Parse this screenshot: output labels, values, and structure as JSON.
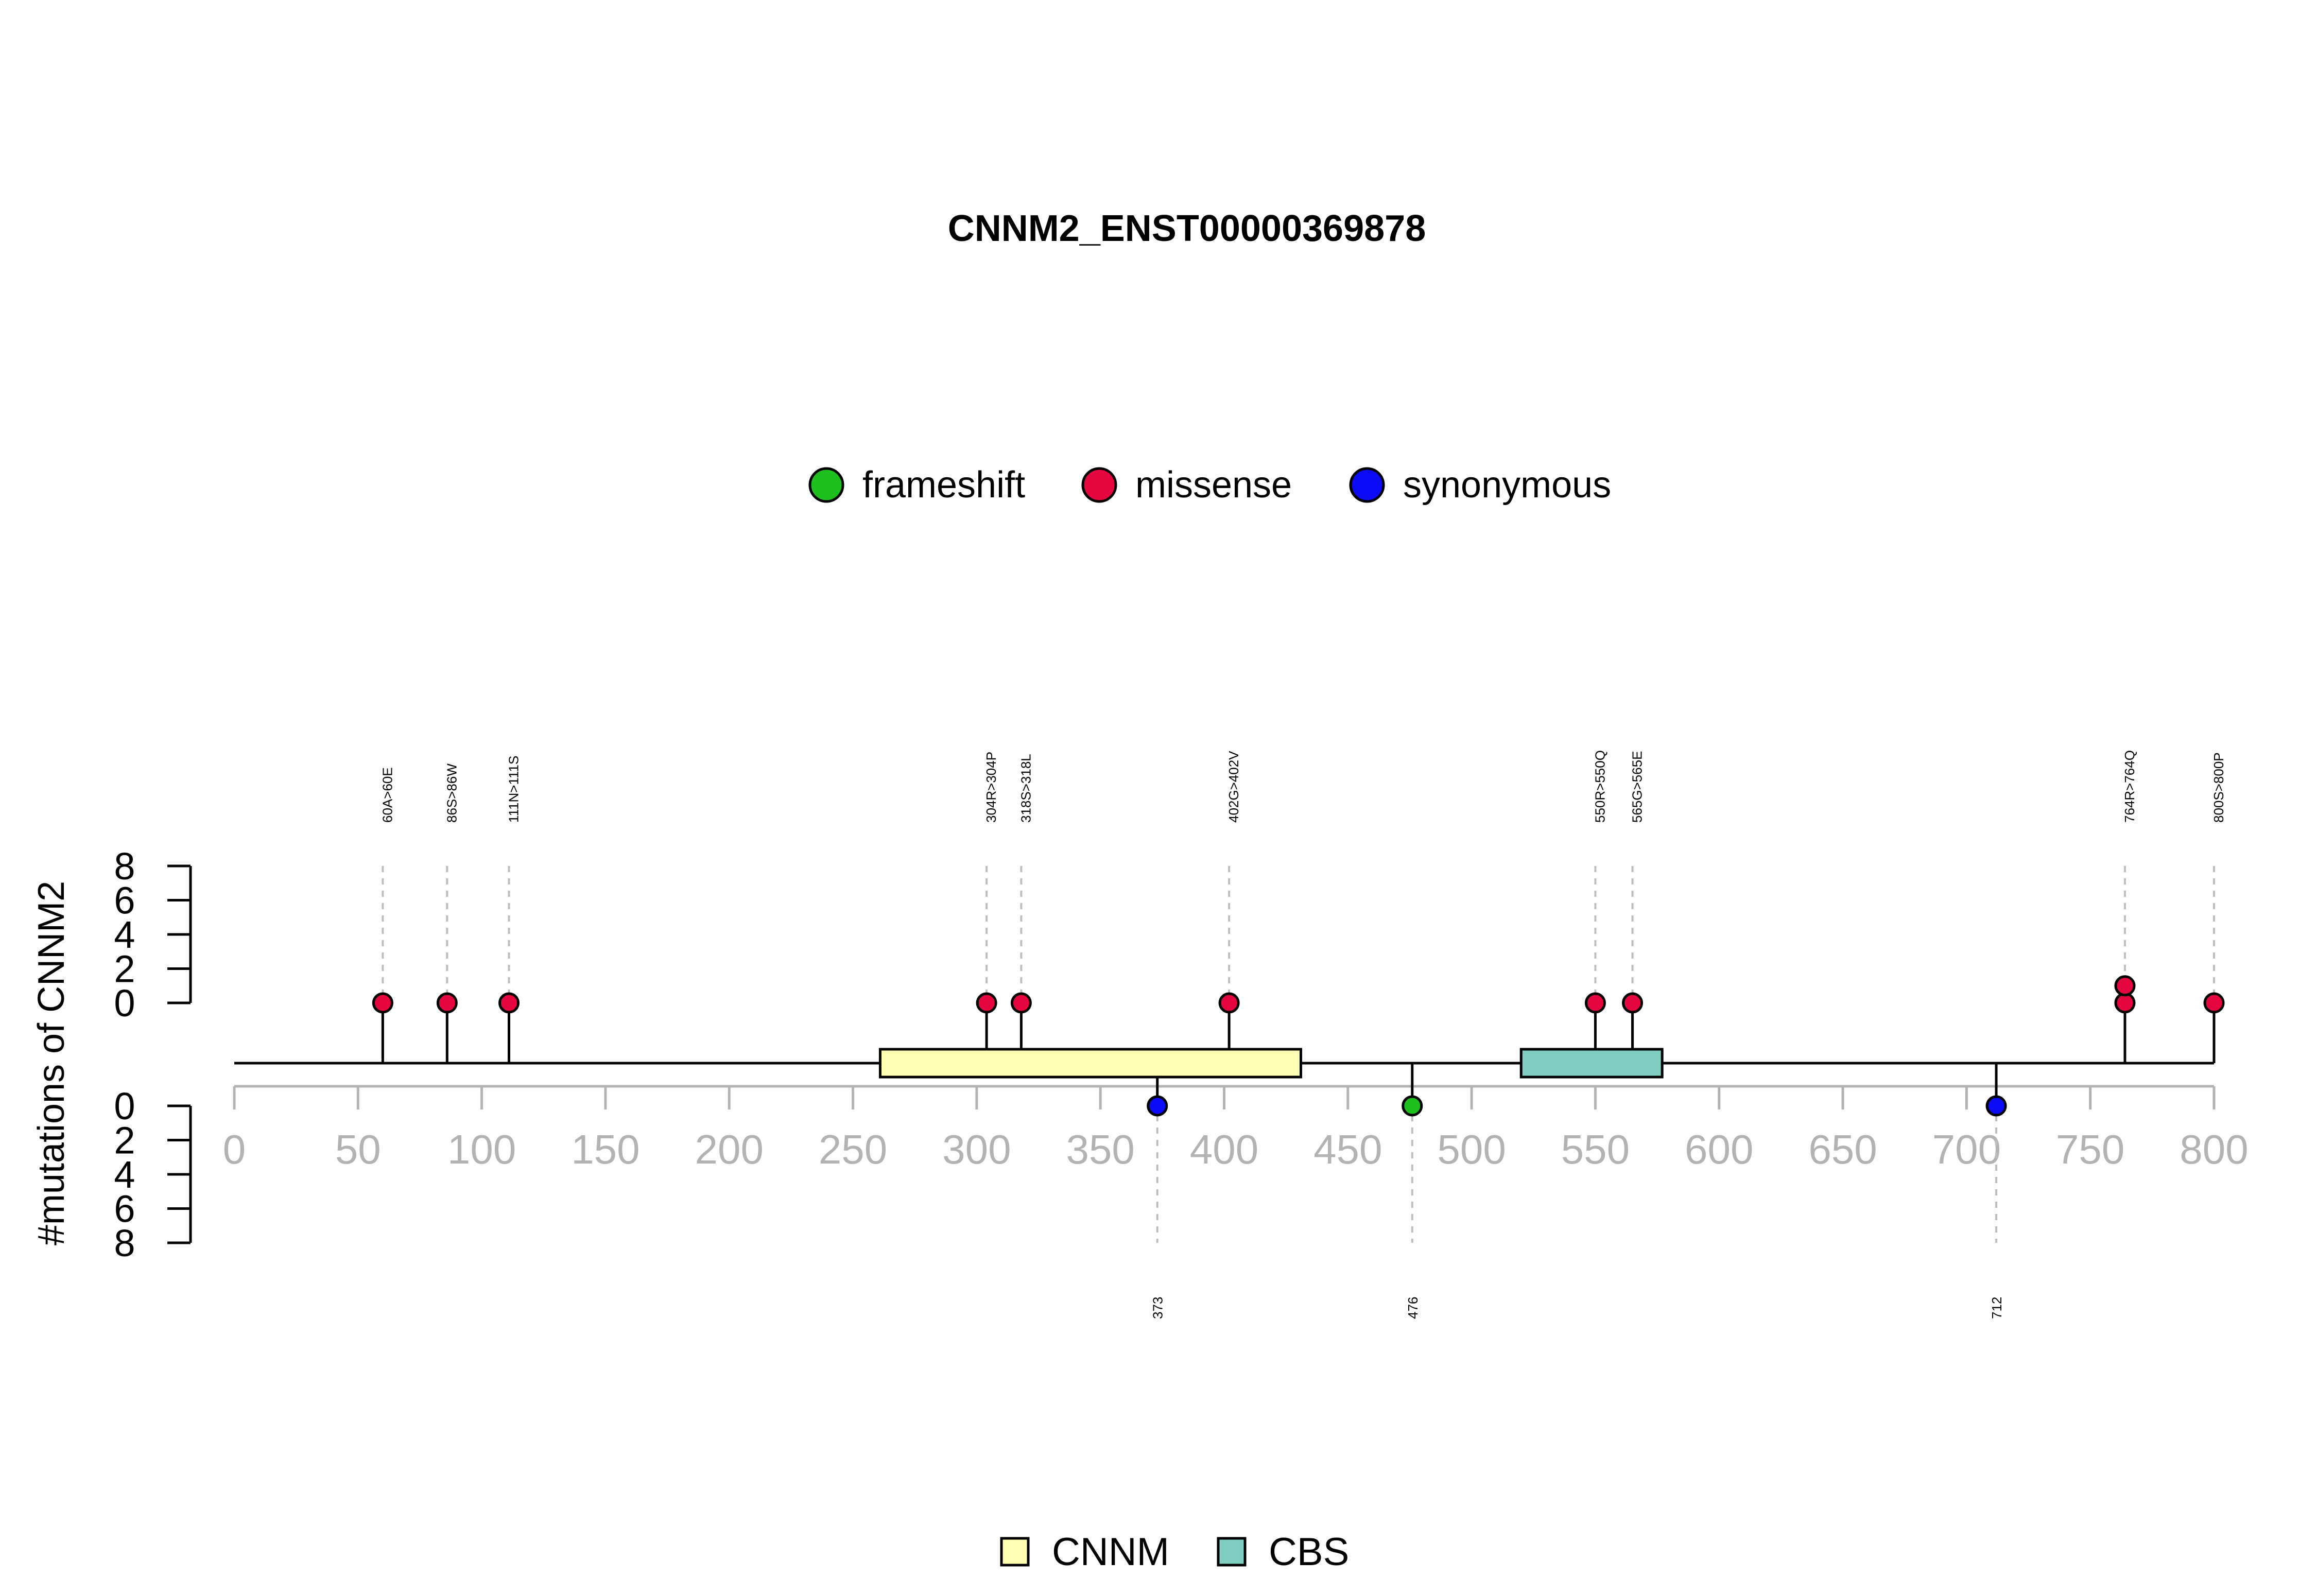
{
  "chart_data": {
    "type": "lollipop",
    "title": "CNNM2_ENST00000369878",
    "ylabel": "#mutations of CNNM2",
    "xlim": [
      0,
      800
    ],
    "x_ticks": [
      0,
      50,
      100,
      150,
      200,
      250,
      300,
      350,
      400,
      450,
      500,
      550,
      600,
      650,
      700,
      750,
      800
    ],
    "y_ticks": [
      0,
      2,
      4,
      6,
      8
    ],
    "ylim_top": [
      0,
      8
    ],
    "ylim_bottom": [
      0,
      8
    ],
    "grid": false,
    "legend_position": "top-center",
    "mutation_types": [
      {
        "name": "frameshift",
        "color": "#1fbf1f"
      },
      {
        "name": "missense",
        "color": "#e6063f"
      },
      {
        "name": "synonymous",
        "color": "#0b0bf5"
      }
    ],
    "mutations_top": [
      {
        "pos": 60,
        "label": "60A>60E",
        "type": "missense",
        "count": 1
      },
      {
        "pos": 86,
        "label": "86S>86W",
        "type": "missense",
        "count": 1
      },
      {
        "pos": 111,
        "label": "111N>111S",
        "type": "missense",
        "count": 1
      },
      {
        "pos": 304,
        "label": "304R>304P",
        "type": "missense",
        "count": 1
      },
      {
        "pos": 318,
        "label": "318S>318L",
        "type": "missense",
        "count": 1
      },
      {
        "pos": 402,
        "label": "402G>402V",
        "type": "missense",
        "count": 1
      },
      {
        "pos": 550,
        "label": "550R>550Q",
        "type": "missense",
        "count": 1
      },
      {
        "pos": 565,
        "label": "565G>565E",
        "type": "missense",
        "count": 1
      },
      {
        "pos": 764,
        "label": "764R>764Q",
        "type": "missense",
        "count": 2
      },
      {
        "pos": 800,
        "label": "800S>800P",
        "type": "missense",
        "count": 1
      }
    ],
    "mutations_bottom": [
      {
        "pos": 373,
        "label": "373",
        "type": "synonymous",
        "count": 1
      },
      {
        "pos": 476,
        "label": "476",
        "type": "frameshift",
        "count": 1
      },
      {
        "pos": 712,
        "label": "712",
        "type": "synonymous",
        "count": 1
      }
    ],
    "domains": [
      {
        "name": "CNNM",
        "start": 261,
        "end": 431,
        "color": "#ffffb3"
      },
      {
        "name": "CBS",
        "start": 520,
        "end": 577,
        "color": "#80cdc1"
      }
    ]
  }
}
